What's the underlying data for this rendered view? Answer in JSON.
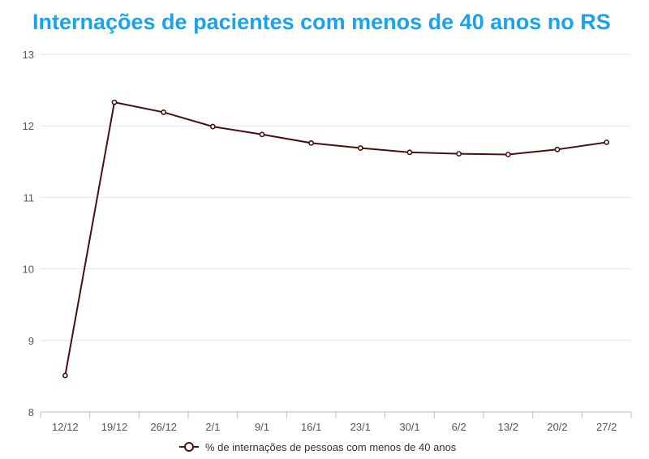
{
  "chart_data": {
    "type": "line",
    "title": "Internações de pacientes com menos de 40 anos no RS",
    "xlabel": "",
    "ylabel": "",
    "categories": [
      "12/12",
      "19/12",
      "26/12",
      "2/1",
      "9/1",
      "16/1",
      "23/1",
      "30/1",
      "6/2",
      "13/2",
      "20/2",
      "27/2"
    ],
    "series": [
      {
        "name": "% de internações de pessoas com menos de 40 anos",
        "values": [
          8.51,
          12.33,
          12.19,
          11.99,
          11.88,
          11.76,
          11.69,
          11.63,
          11.61,
          11.6,
          11.67,
          11.77
        ],
        "color": "#4a0f0f"
      }
    ],
    "ylim": [
      8,
      13
    ],
    "yticks": [
      "8",
      "9",
      "10",
      "11",
      "12",
      "13"
    ],
    "grid": true,
    "legend_position": "bottom"
  }
}
